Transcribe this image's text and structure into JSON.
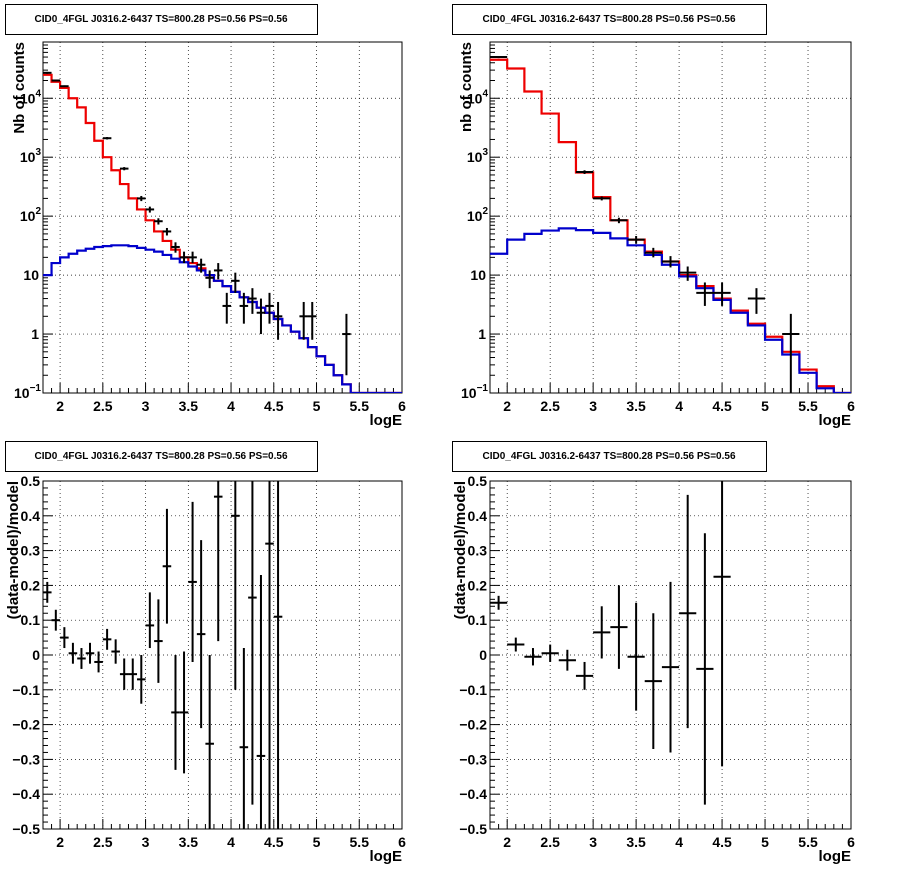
{
  "chart_data": [
    {
      "type": "histogram-log",
      "title": "CID0_4FGL J0316.2-6437 TS=800.28 PS=0.56 PS=0.56",
      "xlabel": "logE",
      "ylabel": "Nb of counts",
      "xlim": [
        1.8,
        6.0
      ],
      "ylim": [
        0.1,
        90000
      ],
      "log_y": true,
      "grid": true,
      "bin_width": 0.1,
      "x_ticks": [
        "2",
        "2.5",
        "3",
        "3.5",
        "4",
        "4.5",
        "5",
        "5.5",
        "6"
      ],
      "y_ticks": [
        {
          "value": 0.1,
          "label": "10",
          "exp": "−1"
        },
        {
          "value": 1,
          "label": "1",
          "exp": ""
        },
        {
          "value": 10,
          "label": "10",
          "exp": ""
        },
        {
          "value": 100,
          "label": "10",
          "exp": "2"
        },
        {
          "value": 1000,
          "label": "10",
          "exp": "3"
        },
        {
          "value": 10000,
          "label": "10",
          "exp": "4"
        }
      ],
      "series": [
        {
          "name": "model",
          "color": "#ee0000",
          "kind": "step",
          "bin_edges_start": 1.8,
          "values": [
            25000,
            19000,
            15000,
            10000,
            7000,
            3800,
            1900,
            1000,
            600,
            350,
            200,
            130,
            85,
            55,
            38,
            27,
            20,
            16,
            13,
            10,
            8,
            6.5,
            5.2,
            4.2,
            3.5,
            2.8,
            2.3,
            1.8,
            1.4,
            1.1,
            0.85,
            0.6,
            0.42,
            0.3,
            0.2,
            0.14,
            0.1,
            0.1,
            0.1,
            0.1,
            0.1,
            0.1
          ]
        },
        {
          "name": "background",
          "color": "#0000cc",
          "kind": "step",
          "bin_edges_start": 1.8,
          "values": [
            10,
            16,
            20,
            23,
            26,
            28,
            30,
            31,
            32,
            32,
            31,
            29,
            27,
            25,
            22,
            19,
            16.5,
            14,
            12,
            10,
            8,
            6.5,
            5.2,
            4.2,
            3.5,
            2.8,
            2.3,
            1.8,
            1.4,
            1.1,
            0.85,
            0.6,
            0.42,
            0.3,
            0.2,
            0.14,
            0.1,
            0.1,
            0.1,
            0.1,
            0.1,
            0.1
          ]
        }
      ],
      "points": [
        {
          "x": 1.85,
          "y": 27000,
          "ylo": 26000,
          "yhi": 28000
        },
        {
          "x": 1.95,
          "y": 20000,
          "ylo": 19500,
          "yhi": 20500
        },
        {
          "x": 2.05,
          "y": 16000,
          "ylo": 15500,
          "yhi": 16500
        },
        {
          "x": 2.55,
          "y": 2100,
          "ylo": 2000,
          "yhi": 2200
        },
        {
          "x": 2.75,
          "y": 640,
          "ylo": 600,
          "yhi": 680
        },
        {
          "x": 2.95,
          "y": 200,
          "ylo": 180,
          "yhi": 220
        },
        {
          "x": 3.05,
          "y": 130,
          "ylo": 115,
          "yhi": 145
        },
        {
          "x": 3.15,
          "y": 82,
          "ylo": 72,
          "yhi": 92
        },
        {
          "x": 3.25,
          "y": 55,
          "ylo": 47,
          "yhi": 63
        },
        {
          "x": 3.35,
          "y": 30,
          "ylo": 24,
          "yhi": 36
        },
        {
          "x": 3.45,
          "y": 20,
          "ylo": 16,
          "yhi": 25
        },
        {
          "x": 3.55,
          "y": 20,
          "ylo": 16,
          "yhi": 25
        },
        {
          "x": 3.65,
          "y": 15,
          "ylo": 11,
          "yhi": 19
        },
        {
          "x": 3.75,
          "y": 9,
          "ylo": 6,
          "yhi": 12
        },
        {
          "x": 3.85,
          "y": 12,
          "ylo": 8.5,
          "yhi": 16
        },
        {
          "x": 3.95,
          "y": 3,
          "ylo": 1.5,
          "yhi": 5
        },
        {
          "x": 4.05,
          "y": 8,
          "ylo": 5,
          "yhi": 11
        },
        {
          "x": 4.15,
          "y": 3,
          "ylo": 1.5,
          "yhi": 5
        },
        {
          "x": 4.25,
          "y": 4,
          "ylo": 2.2,
          "yhi": 6
        },
        {
          "x": 4.35,
          "y": 2.3,
          "ylo": 1,
          "yhi": 4
        },
        {
          "x": 4.45,
          "y": 3,
          "ylo": 1.5,
          "yhi": 5
        },
        {
          "x": 4.55,
          "y": 2,
          "ylo": 0.8,
          "yhi": 3.5
        },
        {
          "x": 4.85,
          "y": 2,
          "ylo": 0.8,
          "yhi": 3.5
        },
        {
          "x": 4.95,
          "y": 2,
          "ylo": 0.8,
          "yhi": 3.5
        },
        {
          "x": 5.35,
          "y": 1,
          "ylo": 0.2,
          "yhi": 2.2
        }
      ]
    },
    {
      "type": "histogram-log",
      "title": "CID0_4FGL J0316.2-6437 TS=800.28 PS=0.56 PS=0.56",
      "xlabel": "logE",
      "ylabel": "nb of counts",
      "xlim": [
        1.8,
        6.0
      ],
      "ylim": [
        0.1,
        90000
      ],
      "log_y": true,
      "grid": true,
      "bin_width": 0.2,
      "x_ticks": [
        "2",
        "2.5",
        "3",
        "3.5",
        "4",
        "4.5",
        "5",
        "5.5",
        "6"
      ],
      "y_ticks": [
        {
          "value": 0.1,
          "label": "10",
          "exp": "−1"
        },
        {
          "value": 1,
          "label": "1",
          "exp": ""
        },
        {
          "value": 10,
          "label": "10",
          "exp": ""
        },
        {
          "value": 100,
          "label": "10",
          "exp": "2"
        },
        {
          "value": 1000,
          "label": "10",
          "exp": "3"
        },
        {
          "value": 10000,
          "label": "10",
          "exp": "4"
        }
      ],
      "series": [
        {
          "name": "model",
          "color": "#ee0000",
          "kind": "step",
          "bin_edges_start": 1.8,
          "values": [
            45000,
            32000,
            13000,
            5500,
            1800,
            550,
            210,
            85,
            40,
            25,
            17,
            10,
            6.5,
            4,
            2.5,
            1.5,
            0.9,
            0.5,
            0.25,
            0.13,
            0.1
          ]
        },
        {
          "name": "background",
          "color": "#0000cc",
          "kind": "step",
          "bin_edges_start": 1.8,
          "values": [
            23,
            40,
            50,
            57,
            62,
            58,
            52,
            42,
            32,
            22,
            15,
            9.5,
            6,
            3.8,
            2.3,
            1.4,
            0.8,
            0.45,
            0.22,
            0.12,
            0.1
          ]
        }
      ],
      "points": [
        {
          "x": 1.9,
          "y": 50000,
          "ylo": 48000,
          "yhi": 52000
        },
        {
          "x": 2.9,
          "y": 560,
          "ylo": 520,
          "yhi": 600
        },
        {
          "x": 3.1,
          "y": 200,
          "ylo": 185,
          "yhi": 215
        },
        {
          "x": 3.3,
          "y": 85,
          "ylo": 76,
          "yhi": 94
        },
        {
          "x": 3.5,
          "y": 40,
          "ylo": 34,
          "yhi": 46
        },
        {
          "x": 3.7,
          "y": 24,
          "ylo": 20,
          "yhi": 29
        },
        {
          "x": 3.9,
          "y": 17,
          "ylo": 13.5,
          "yhi": 21
        },
        {
          "x": 4.1,
          "y": 11,
          "ylo": 8,
          "yhi": 14
        },
        {
          "x": 4.3,
          "y": 5,
          "ylo": 3,
          "yhi": 7.5
        },
        {
          "x": 4.5,
          "y": 5,
          "ylo": 3,
          "yhi": 7.5
        },
        {
          "x": 4.9,
          "y": 4,
          "ylo": 2.2,
          "yhi": 6
        },
        {
          "x": 5.3,
          "y": 1,
          "ylo": 0.1,
          "yhi": 2.2
        }
      ]
    },
    {
      "type": "errorbar",
      "title": "CID0_4FGL J0316.2-6437 TS=800.28 PS=0.56 PS=0.56",
      "xlabel": "logE",
      "ylabel": "(data-model)/model",
      "xlim": [
        1.8,
        6.0
      ],
      "ylim": [
        -0.5,
        0.5
      ],
      "log_y": false,
      "grid": true,
      "bin_width": 0.1,
      "x_ticks": [
        "2",
        "2.5",
        "3",
        "3.5",
        "4",
        "4.5",
        "5",
        "5.5",
        "6"
      ],
      "y_ticks": [
        "−0.5",
        "−0.4",
        "−0.3",
        "−0.2",
        "−0.1",
        "0",
        "0.1",
        "0.2",
        "0.3",
        "0.4",
        "0.5"
      ],
      "points": [
        {
          "x": 1.85,
          "y": 0.18,
          "ylo": 0.15,
          "yhi": 0.21
        },
        {
          "x": 1.95,
          "y": 0.1,
          "ylo": 0.07,
          "yhi": 0.13
        },
        {
          "x": 2.05,
          "y": 0.05,
          "ylo": 0.02,
          "yhi": 0.08
        },
        {
          "x": 2.15,
          "y": 0.005,
          "ylo": -0.025,
          "yhi": 0.035
        },
        {
          "x": 2.25,
          "y": -0.01,
          "ylo": -0.04,
          "yhi": 0.02
        },
        {
          "x": 2.35,
          "y": 0.005,
          "ylo": -0.025,
          "yhi": 0.035
        },
        {
          "x": 2.45,
          "y": -0.02,
          "ylo": -0.05,
          "yhi": 0.01
        },
        {
          "x": 2.55,
          "y": 0.045,
          "ylo": 0.015,
          "yhi": 0.075
        },
        {
          "x": 2.65,
          "y": 0.01,
          "ylo": -0.025,
          "yhi": 0.045
        },
        {
          "x": 2.75,
          "y": -0.055,
          "ylo": -0.1,
          "yhi": -0.01
        },
        {
          "x": 2.85,
          "y": -0.055,
          "ylo": -0.1,
          "yhi": -0.01
        },
        {
          "x": 2.95,
          "y": -0.07,
          "ylo": -0.14,
          "yhi": 0.0
        },
        {
          "x": 3.05,
          "y": 0.085,
          "ylo": 0.02,
          "yhi": 0.18
        },
        {
          "x": 3.15,
          "y": 0.04,
          "ylo": -0.08,
          "yhi": 0.16
        },
        {
          "x": 3.25,
          "y": 0.255,
          "ylo": 0.09,
          "yhi": 0.42
        },
        {
          "x": 3.35,
          "y": -0.165,
          "ylo": -0.33,
          "yhi": 0.0
        },
        {
          "x": 3.45,
          "y": -0.165,
          "ylo": -0.34,
          "yhi": 0.01
        },
        {
          "x": 3.55,
          "y": 0.21,
          "ylo": -0.02,
          "yhi": 0.44
        },
        {
          "x": 3.65,
          "y": 0.06,
          "ylo": -0.21,
          "yhi": 0.33
        },
        {
          "x": 3.75,
          "y": -0.255,
          "ylo": -0.5,
          "yhi": 0.0
        },
        {
          "x": 3.85,
          "y": 0.455,
          "ylo": 0.04,
          "yhi": 0.5
        },
        {
          "x": 4.05,
          "y": 0.4,
          "ylo": -0.1,
          "yhi": 0.5
        },
        {
          "x": 4.15,
          "y": -0.265,
          "ylo": -0.5,
          "yhi": 0.02
        },
        {
          "x": 4.25,
          "y": 0.165,
          "ylo": -0.43,
          "yhi": 0.5
        },
        {
          "x": 4.35,
          "y": -0.29,
          "ylo": -0.5,
          "yhi": 0.23
        },
        {
          "x": 4.45,
          "y": 0.32,
          "ylo": -0.5,
          "yhi": 0.5
        },
        {
          "x": 4.55,
          "y": 0.11,
          "ylo": -0.5,
          "yhi": 0.5
        }
      ]
    },
    {
      "type": "errorbar",
      "title": "CID0_4FGL J0316.2-6437 TS=800.28 PS=0.56 PS=0.56",
      "xlabel": "logE",
      "ylabel": "(data-model)/model",
      "xlim": [
        1.8,
        6.0
      ],
      "ylim": [
        -0.5,
        0.5
      ],
      "log_y": false,
      "grid": true,
      "bin_width": 0.2,
      "x_ticks": [
        "2",
        "2.5",
        "3",
        "3.5",
        "4",
        "4.5",
        "5",
        "5.5",
        "6"
      ],
      "y_ticks": [
        "−0.5",
        "−0.4",
        "−0.3",
        "−0.2",
        "−0.1",
        "0",
        "0.1",
        "0.2",
        "0.3",
        "0.4",
        "0.5"
      ],
      "points": [
        {
          "x": 1.9,
          "y": 0.15,
          "ylo": 0.13,
          "yhi": 0.17
        },
        {
          "x": 2.1,
          "y": 0.03,
          "ylo": 0.01,
          "yhi": 0.05
        },
        {
          "x": 2.3,
          "y": -0.005,
          "ylo": -0.03,
          "yhi": 0.02
        },
        {
          "x": 2.5,
          "y": 0.005,
          "ylo": -0.02,
          "yhi": 0.03
        },
        {
          "x": 2.7,
          "y": -0.015,
          "ylo": -0.045,
          "yhi": 0.015
        },
        {
          "x": 2.9,
          "y": -0.06,
          "ylo": -0.1,
          "yhi": -0.02
        },
        {
          "x": 3.1,
          "y": 0.065,
          "ylo": -0.01,
          "yhi": 0.14
        },
        {
          "x": 3.3,
          "y": 0.08,
          "ylo": -0.04,
          "yhi": 0.2
        },
        {
          "x": 3.5,
          "y": -0.005,
          "ylo": -0.16,
          "yhi": 0.15
        },
        {
          "x": 3.7,
          "y": -0.075,
          "ylo": -0.27,
          "yhi": 0.12
        },
        {
          "x": 3.9,
          "y": -0.035,
          "ylo": -0.28,
          "yhi": 0.21
        },
        {
          "x": 4.1,
          "y": 0.12,
          "ylo": -0.21,
          "yhi": 0.46
        },
        {
          "x": 4.3,
          "y": -0.04,
          "ylo": -0.43,
          "yhi": 0.35
        },
        {
          "x": 4.5,
          "y": 0.225,
          "ylo": -0.32,
          "yhi": 0.5
        }
      ]
    }
  ]
}
